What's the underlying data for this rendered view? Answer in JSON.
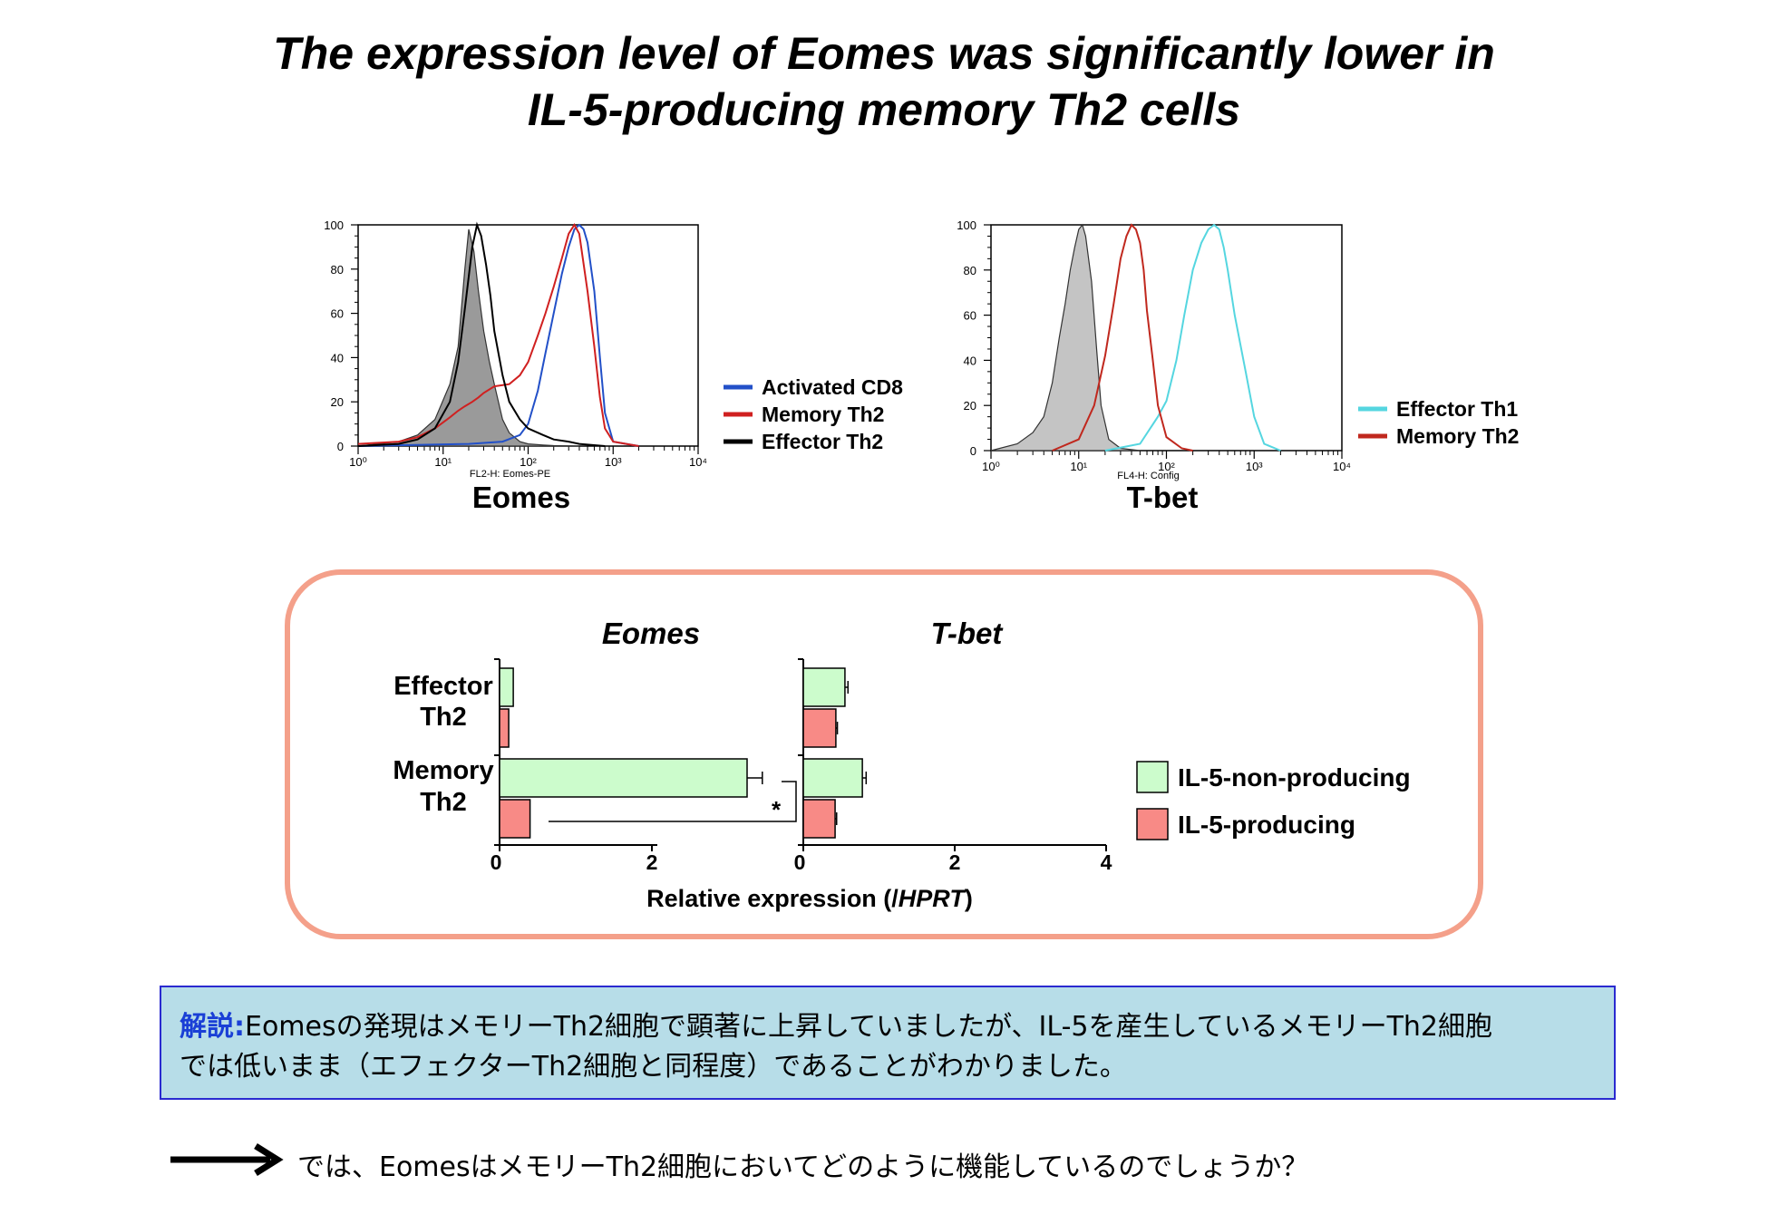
{
  "title": {
    "line1": "The expression level of Eomes was significantly lower in",
    "line2": "IL-5-producing memory Th2 cells"
  },
  "chart_data": [
    {
      "type": "line",
      "subtype": "flow-cytometry-histogram",
      "title": "Eomes",
      "xlabel": "FL2-H: Eomes-PE",
      "xscale": "log",
      "xlim": [
        1,
        10000
      ],
      "xticks": [
        "10⁰",
        "10¹",
        "10²",
        "10³",
        "10⁴"
      ],
      "ylim": [
        0,
        100
      ],
      "yticks": [
        "0",
        "20",
        "40",
        "60",
        "80",
        "100"
      ],
      "legend_position": "right",
      "shaded_control": {
        "x": [
          1,
          3,
          5,
          8,
          12,
          15,
          18,
          20,
          23,
          26,
          30,
          35,
          40,
          50,
          60,
          80,
          100,
          150,
          200,
          400
        ],
        "y": [
          0,
          2,
          5,
          12,
          28,
          45,
          80,
          98,
          88,
          70,
          52,
          38,
          28,
          12,
          6,
          2,
          1,
          0.5,
          0.2,
          0
        ]
      },
      "series": [
        {
          "name": "Activated CD8",
          "color": "#2250c8",
          "x": [
            1,
            20,
            50,
            80,
            100,
            130,
            160,
            200,
            250,
            300,
            350,
            400,
            450,
            500,
            600,
            700,
            800,
            1000,
            2000
          ],
          "y": [
            0,
            1,
            2,
            5,
            10,
            25,
            42,
            60,
            78,
            90,
            98,
            100,
            98,
            92,
            70,
            40,
            15,
            2,
            0
          ]
        },
        {
          "name": "Memory Th2",
          "color": "#d02020",
          "x": [
            1,
            3,
            5,
            8,
            12,
            15,
            18,
            22,
            26,
            30,
            40,
            60,
            80,
            100,
            130,
            160,
            200,
            250,
            300,
            350,
            400,
            500,
            600,
            700,
            800,
            1000,
            2000
          ],
          "y": [
            1,
            2,
            4,
            8,
            13,
            16,
            18,
            20,
            22,
            24,
            27,
            28,
            32,
            38,
            50,
            60,
            72,
            85,
            96,
            100,
            96,
            70,
            45,
            22,
            8,
            2,
            0
          ]
        },
        {
          "name": "Effector Th2",
          "color": "#000000",
          "x": [
            1,
            3,
            5,
            8,
            12,
            15,
            18,
            22,
            25,
            28,
            32,
            36,
            40,
            50,
            60,
            80,
            100,
            150,
            200,
            300,
            400,
            800
          ],
          "y": [
            0,
            1,
            3,
            8,
            20,
            38,
            62,
            90,
            100,
            95,
            82,
            68,
            52,
            32,
            20,
            12,
            8,
            5,
            3,
            2,
            1,
            0
          ]
        }
      ]
    },
    {
      "type": "line",
      "subtype": "flow-cytometry-histogram",
      "title": "T-bet",
      "xlabel": "FL4-H: Config",
      "xscale": "log",
      "xlim": [
        1,
        10000
      ],
      "xticks": [
        "10⁰",
        "10¹",
        "10²",
        "10³",
        "10⁴"
      ],
      "ylim": [
        0,
        100
      ],
      "yticks": [
        "0",
        "20",
        "40",
        "60",
        "80",
        "100"
      ],
      "legend_position": "right",
      "shaded_control": {
        "x": [
          1,
          2,
          3,
          4,
          5,
          6,
          7,
          8,
          9,
          10,
          11,
          12,
          14,
          16,
          18,
          22,
          30,
          50
        ],
        "y": [
          0,
          3,
          8,
          15,
          30,
          50,
          65,
          80,
          90,
          98,
          100,
          95,
          75,
          45,
          20,
          5,
          1,
          0
        ]
      },
      "series": [
        {
          "name": "Effector Th1",
          "color": "#55d6e0",
          "x": [
            20,
            50,
            80,
            100,
            130,
            160,
            200,
            250,
            300,
            350,
            400,
            450,
            500,
            600,
            800,
            1000,
            1300,
            2000
          ],
          "y": [
            0,
            3,
            15,
            22,
            40,
            60,
            80,
            92,
            98,
            100,
            98,
            90,
            80,
            60,
            35,
            15,
            3,
            0
          ]
        },
        {
          "name": "Memory Th2",
          "color": "#c0281e",
          "x": [
            5,
            10,
            15,
            20,
            25,
            30,
            35,
            40,
            45,
            50,
            55,
            60,
            70,
            80,
            100,
            150,
            200
          ],
          "y": [
            0,
            5,
            20,
            42,
            65,
            85,
            95,
            100,
            98,
            92,
            80,
            62,
            40,
            20,
            6,
            1,
            0
          ]
        }
      ]
    },
    {
      "type": "bar",
      "orientation": "horizontal",
      "title": "Eomes",
      "categories": [
        "Effector Th2",
        "Memory Th2"
      ],
      "category_labels": [
        [
          "Effector",
          "Th2"
        ],
        [
          "Memory",
          "Th2"
        ]
      ],
      "xlim": [
        0,
        4
      ],
      "xticks": [
        "0",
        "2"
      ],
      "series": [
        {
          "name": "IL-5-non-producing",
          "color": "#ccfccc",
          "values": [
            0.18,
            3.25
          ],
          "errors": [
            0,
            0.2
          ]
        },
        {
          "name": "IL-5-producing",
          "color": "#f88a86",
          "values": [
            0.12,
            0.4
          ],
          "errors": [
            0,
            0
          ]
        }
      ],
      "annotation": "*"
    },
    {
      "type": "bar",
      "orientation": "horizontal",
      "title": "T-bet",
      "categories": [
        "Effector Th2",
        "Memory Th2"
      ],
      "xlim": [
        0,
        4
      ],
      "xticks": [
        "0",
        "2",
        "4"
      ],
      "series": [
        {
          "name": "IL-5-non-producing",
          "color": "#ccfccc",
          "values": [
            0.55,
            0.78
          ],
          "errors": [
            0.04,
            0.05
          ]
        },
        {
          "name": "IL-5-producing",
          "color": "#f88a86",
          "values": [
            0.43,
            0.42
          ],
          "errors": [
            0.02,
            0.02
          ]
        }
      ],
      "xlabel": "Relative expression (/HPRT)",
      "xlabel_plain": "Relative expression (/",
      "xlabel_italic": "HPRT",
      "xlabel_close": ")"
    }
  ],
  "note": {
    "heading": "解説:",
    "line1": "Eomesの発現はメモリーTh2細胞で顕著に上昇していましたが、IL-5を産生しているメモリーTh2細胞",
    "line2": "では低いまま（エフェクターTh2細胞と同程度）であることがわかりました。"
  },
  "question": "では、EomesはメモリーTh2細胞においてどのように機能しているのでしょうか？"
}
